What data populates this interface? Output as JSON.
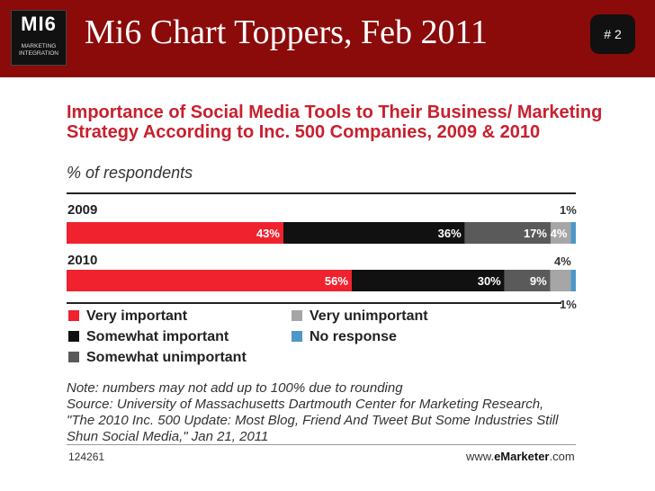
{
  "slide": {
    "logo_main": "MI6",
    "logo_line1": "MARKETING",
    "logo_line2": "INTEGRATION",
    "title": "Mi6 Chart Toppers, Feb 2011",
    "slide_number": "# 2"
  },
  "chart_data": {
    "type": "bar",
    "orientation": "horizontal-stacked",
    "title": "Importance of Social Media Tools to Their Business/ Marketing Strategy According to Inc. 500 Companies, 2009 & 2010",
    "subtitle": "% of respondents",
    "categories": [
      "2009",
      "2010"
    ],
    "series": [
      {
        "name": "Very important",
        "color": "#f0222e",
        "values": [
          43,
          56
        ],
        "labels": [
          "43%",
          "56%"
        ]
      },
      {
        "name": "Somewhat important",
        "color": "#111111",
        "values": [
          36,
          30
        ],
        "labels": [
          "36%",
          "30%"
        ]
      },
      {
        "name": "Somewhat unimportant",
        "color": "#5a5a5a",
        "values": [
          17,
          9
        ],
        "labels": [
          "17%",
          "9%"
        ]
      },
      {
        "name": "Very unimportant",
        "color": "#a6a6a6",
        "values": [
          4,
          4
        ],
        "labels": [
          "4%",
          "4%"
        ]
      },
      {
        "name": "No response",
        "color": "#4d97c9",
        "values": [
          1,
          1
        ],
        "labels": [
          "1%",
          "1%"
        ]
      }
    ],
    "legend": [
      "Very important",
      "Very unimportant",
      "Somewhat important",
      "No response",
      "Somewhat unimportant"
    ],
    "note": "Note: numbers may not add up to 100% due to rounding",
    "source": "Source: University of Massachusetts Dartmouth Center for Marketing Research, \"The 2010 Inc. 500 Update: Most Blog, Friend And Tweet But Some Industries Still Shun Social Media,\" Jan 21, 2011",
    "chart_id": "124261",
    "brand_prefix": "www.",
    "brand_name": "eMarketer",
    "brand_suffix": ".com"
  }
}
